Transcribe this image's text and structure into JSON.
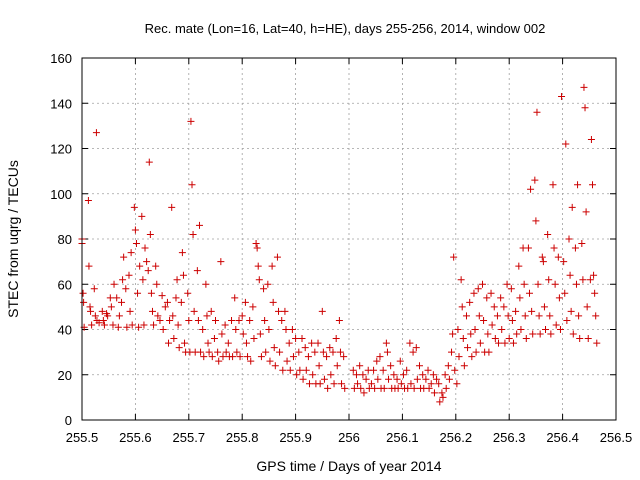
{
  "chart_data": {
    "type": "scatter",
    "title": "Rec. mate (Lon=16, Lat=40, h=HE), days 255-256, 2014, window 002",
    "xlabel": "GPS time / Days of year 2014",
    "ylabel": "STEC from uqrg / TECUs",
    "xlim": [
      255.5,
      256.5
    ],
    "ylim": [
      0,
      160
    ],
    "xticks": [
      "255.5",
      "255.6",
      "255.7",
      "255.8",
      "255.9",
      "256",
      "256.1",
      "256.2",
      "256.3",
      "256.4",
      "256.5"
    ],
    "yticks": [
      "0",
      "20",
      "40",
      "60",
      "80",
      "100",
      "120",
      "140",
      "160"
    ],
    "xtick_values": [
      255.5,
      255.6,
      255.7,
      255.8,
      255.9,
      256.0,
      256.1,
      256.2,
      256.3,
      256.4,
      256.5
    ],
    "ytick_values": [
      0,
      20,
      40,
      60,
      80,
      100,
      120,
      140,
      160
    ],
    "grid": true,
    "marker": "+",
    "color": "#cc0000",
    "points": [
      [
        255.5,
        80
      ],
      [
        255.5,
        78
      ],
      [
        255.502,
        56
      ],
      [
        255.503,
        52
      ],
      [
        255.504,
        41
      ],
      [
        255.512,
        97
      ],
      [
        255.513,
        68
      ],
      [
        255.515,
        50
      ],
      [
        255.516,
        48
      ],
      [
        255.518,
        42
      ],
      [
        255.523,
        58
      ],
      [
        255.525,
        46
      ],
      [
        255.527,
        127
      ],
      [
        255.528,
        44
      ],
      [
        255.532,
        43
      ],
      [
        255.538,
        48
      ],
      [
        255.54,
        44
      ],
      [
        255.542,
        42
      ],
      [
        255.546,
        47
      ],
      [
        255.548,
        46
      ],
      [
        255.553,
        54
      ],
      [
        255.555,
        50
      ],
      [
        255.558,
        42
      ],
      [
        255.56,
        60
      ],
      [
        255.565,
        54
      ],
      [
        255.568,
        41
      ],
      [
        255.57,
        46
      ],
      [
        255.574,
        52
      ],
      [
        255.576,
        62
      ],
      [
        255.578,
        72
      ],
      [
        255.582,
        58
      ],
      [
        255.584,
        41
      ],
      [
        255.588,
        64
      ],
      [
        255.59,
        48
      ],
      [
        255.592,
        74
      ],
      [
        255.594,
        42
      ],
      [
        255.598,
        94
      ],
      [
        255.6,
        84
      ],
      [
        255.602,
        78
      ],
      [
        255.604,
        56
      ],
      [
        255.606,
        41
      ],
      [
        255.608,
        68
      ],
      [
        255.612,
        90
      ],
      [
        255.614,
        62
      ],
      [
        255.616,
        42
      ],
      [
        255.618,
        76
      ],
      [
        255.621,
        70
      ],
      [
        255.624,
        66
      ],
      [
        255.626,
        114
      ],
      [
        255.628,
        82
      ],
      [
        255.63,
        56
      ],
      [
        255.632,
        48
      ],
      [
        255.634,
        42
      ],
      [
        255.638,
        68
      ],
      [
        255.64,
        60
      ],
      [
        255.642,
        46
      ],
      [
        255.646,
        44
      ],
      [
        255.65,
        55
      ],
      [
        255.652,
        40
      ],
      [
        255.656,
        50
      ],
      [
        255.66,
        52
      ],
      [
        255.662,
        34
      ],
      [
        255.664,
        44
      ],
      [
        255.668,
        94
      ],
      [
        255.67,
        46
      ],
      [
        255.672,
        36
      ],
      [
        255.676,
        54
      ],
      [
        255.678,
        62
      ],
      [
        255.68,
        42
      ],
      [
        255.682,
        32
      ],
      [
        255.686,
        52
      ],
      [
        255.688,
        74
      ],
      [
        255.69,
        64
      ],
      [
        255.692,
        34
      ],
      [
        255.694,
        30
      ],
      [
        255.698,
        56
      ],
      [
        255.7,
        44
      ],
      [
        255.702,
        30
      ],
      [
        255.704,
        132
      ],
      [
        255.706,
        104
      ],
      [
        255.708,
        82
      ],
      [
        255.71,
        48
      ],
      [
        255.712,
        30
      ],
      [
        255.716,
        66
      ],
      [
        255.718,
        44
      ],
      [
        255.72,
        86
      ],
      [
        255.722,
        30
      ],
      [
        255.726,
        40
      ],
      [
        255.728,
        28
      ],
      [
        255.732,
        60
      ],
      [
        255.734,
        46
      ],
      [
        255.736,
        34
      ],
      [
        255.738,
        30
      ],
      [
        255.742,
        48
      ],
      [
        255.744,
        28
      ],
      [
        255.748,
        36
      ],
      [
        255.75,
        44
      ],
      [
        255.754,
        30
      ],
      [
        255.756,
        26
      ],
      [
        255.76,
        70
      ],
      [
        255.762,
        38
      ],
      [
        255.764,
        28
      ],
      [
        255.768,
        42
      ],
      [
        255.77,
        30
      ],
      [
        255.774,
        34
      ],
      [
        255.776,
        28
      ],
      [
        255.78,
        44
      ],
      [
        255.782,
        28
      ],
      [
        255.786,
        54
      ],
      [
        255.788,
        40
      ],
      [
        255.79,
        30
      ],
      [
        255.794,
        44
      ],
      [
        255.796,
        28
      ],
      [
        255.8,
        46
      ],
      [
        255.802,
        38
      ],
      [
        255.806,
        52
      ],
      [
        255.808,
        34
      ],
      [
        255.81,
        28
      ],
      [
        255.814,
        44
      ],
      [
        255.816,
        26
      ],
      [
        255.82,
        50
      ],
      [
        255.822,
        36
      ],
      [
        255.826,
        78
      ],
      [
        255.828,
        76
      ],
      [
        255.83,
        68
      ],
      [
        255.832,
        62
      ],
      [
        255.834,
        38
      ],
      [
        255.836,
        28
      ],
      [
        255.84,
        58
      ],
      [
        255.842,
        44
      ],
      [
        255.844,
        30
      ],
      [
        255.848,
        60
      ],
      [
        255.85,
        40
      ],
      [
        255.852,
        26
      ],
      [
        255.856,
        68
      ],
      [
        255.858,
        52
      ],
      [
        255.86,
        32
      ],
      [
        255.862,
        24
      ],
      [
        255.866,
        72
      ],
      [
        255.868,
        48
      ],
      [
        255.87,
        30
      ],
      [
        255.874,
        44
      ],
      [
        255.876,
        22
      ],
      [
        255.88,
        48
      ],
      [
        255.882,
        40
      ],
      [
        255.884,
        26
      ],
      [
        255.888,
        34
      ],
      [
        255.89,
        22
      ],
      [
        255.894,
        40
      ],
      [
        255.896,
        28
      ],
      [
        255.9,
        36
      ],
      [
        255.902,
        20
      ],
      [
        255.906,
        30
      ],
      [
        255.908,
        22
      ],
      [
        255.912,
        36
      ],
      [
        255.914,
        18
      ],
      [
        255.918,
        32
      ],
      [
        255.92,
        22
      ],
      [
        255.924,
        28
      ],
      [
        255.926,
        16
      ],
      [
        255.93,
        34
      ],
      [
        255.932,
        20
      ],
      [
        255.936,
        30
      ],
      [
        255.938,
        16
      ],
      [
        255.942,
        34
      ],
      [
        255.944,
        24
      ],
      [
        255.946,
        16
      ],
      [
        255.95,
        48
      ],
      [
        255.952,
        30
      ],
      [
        255.954,
        18
      ],
      [
        255.958,
        28
      ],
      [
        255.96,
        14
      ],
      [
        255.964,
        32
      ],
      [
        255.966,
        20
      ],
      [
        255.97,
        30
      ],
      [
        255.972,
        16
      ],
      [
        255.976,
        36
      ],
      [
        255.978,
        24
      ],
      [
        255.982,
        44
      ],
      [
        255.984,
        30
      ],
      [
        255.986,
        16
      ],
      [
        255.99,
        28
      ],
      [
        255.992,
        14
      ],
      [
        256.008,
        22
      ],
      [
        256.01,
        14
      ],
      [
        256.014,
        20
      ],
      [
        256.016,
        16
      ],
      [
        256.02,
        24
      ],
      [
        256.022,
        14
      ],
      [
        256.026,
        20
      ],
      [
        256.028,
        12
      ],
      [
        256.032,
        18
      ],
      [
        256.036,
        22
      ],
      [
        256.038,
        14
      ],
      [
        256.042,
        16
      ],
      [
        256.046,
        22
      ],
      [
        256.048,
        14
      ],
      [
        256.052,
        26
      ],
      [
        256.054,
        18
      ],
      [
        256.058,
        28
      ],
      [
        256.06,
        14
      ],
      [
        256.064,
        22
      ],
      [
        256.066,
        14
      ],
      [
        256.07,
        34
      ],
      [
        256.072,
        30
      ],
      [
        256.074,
        18
      ],
      [
        256.078,
        24
      ],
      [
        256.08,
        14
      ],
      [
        256.084,
        20
      ],
      [
        256.086,
        14
      ],
      [
        256.09,
        18
      ],
      [
        256.092,
        14
      ],
      [
        256.096,
        26
      ],
      [
        256.098,
        16
      ],
      [
        256.102,
        20
      ],
      [
        256.104,
        14
      ],
      [
        256.108,
        22
      ],
      [
        256.11,
        14
      ],
      [
        256.114,
        34
      ],
      [
        256.116,
        16
      ],
      [
        256.12,
        30
      ],
      [
        256.122,
        14
      ],
      [
        256.126,
        32
      ],
      [
        256.128,
        18
      ],
      [
        256.132,
        24
      ],
      [
        256.134,
        14
      ],
      [
        256.138,
        20
      ],
      [
        256.14,
        14
      ],
      [
        256.144,
        18
      ],
      [
        256.148,
        22
      ],
      [
        256.15,
        14
      ],
      [
        256.154,
        16
      ],
      [
        256.158,
        20
      ],
      [
        256.16,
        12
      ],
      [
        256.164,
        18
      ],
      [
        256.168,
        16
      ],
      [
        256.17,
        8
      ],
      [
        256.174,
        12
      ],
      [
        256.176,
        10
      ],
      [
        256.18,
        20
      ],
      [
        256.182,
        14
      ],
      [
        256.186,
        24
      ],
      [
        256.188,
        18
      ],
      [
        256.192,
        30
      ],
      [
        256.194,
        38
      ],
      [
        256.196,
        72
      ],
      [
        256.198,
        22
      ],
      [
        256.202,
        16
      ],
      [
        256.204,
        40
      ],
      [
        256.206,
        28
      ],
      [
        256.21,
        62
      ],
      [
        256.212,
        50
      ],
      [
        256.214,
        36
      ],
      [
        256.216,
        24
      ],
      [
        256.22,
        46
      ],
      [
        256.222,
        32
      ],
      [
        256.226,
        52
      ],
      [
        256.228,
        38
      ],
      [
        256.23,
        28
      ],
      [
        256.234,
        56
      ],
      [
        256.236,
        40
      ],
      [
        256.238,
        30
      ],
      [
        256.242,
        58
      ],
      [
        256.244,
        46
      ],
      [
        256.246,
        34
      ],
      [
        256.25,
        60
      ],
      [
        256.252,
        44
      ],
      [
        256.254,
        30
      ],
      [
        256.258,
        54
      ],
      [
        256.26,
        38
      ],
      [
        256.262,
        30
      ],
      [
        256.266,
        56
      ],
      [
        256.268,
        42
      ],
      [
        256.272,
        50
      ],
      [
        256.274,
        36
      ],
      [
        256.278,
        46
      ],
      [
        256.28,
        34
      ],
      [
        256.284,
        54
      ],
      [
        256.286,
        40
      ],
      [
        256.29,
        50
      ],
      [
        256.292,
        34
      ],
      [
        256.296,
        60
      ],
      [
        256.298,
        46
      ],
      [
        256.3,
        36
      ],
      [
        256.304,
        58
      ],
      [
        256.306,
        44
      ],
      [
        256.308,
        34
      ],
      [
        256.312,
        48
      ],
      [
        256.314,
        38
      ],
      [
        256.318,
        68
      ],
      [
        256.32,
        54
      ],
      [
        256.322,
        40
      ],
      [
        256.326,
        76
      ],
      [
        256.328,
        60
      ],
      [
        256.33,
        46
      ],
      [
        256.332,
        36
      ],
      [
        256.336,
        76
      ],
      [
        256.338,
        56
      ],
      [
        256.34,
        102
      ],
      [
        256.342,
        48
      ],
      [
        256.344,
        38
      ],
      [
        256.348,
        106
      ],
      [
        256.35,
        88
      ],
      [
        256.352,
        136
      ],
      [
        256.354,
        60
      ],
      [
        256.356,
        46
      ],
      [
        256.358,
        38
      ],
      [
        256.362,
        72
      ],
      [
        256.364,
        70
      ],
      [
        256.366,
        50
      ],
      [
        256.368,
        40
      ],
      [
        256.372,
        82
      ],
      [
        256.374,
        62
      ],
      [
        256.376,
        46
      ],
      [
        256.378,
        38
      ],
      [
        256.382,
        104
      ],
      [
        256.384,
        76
      ],
      [
        256.386,
        60
      ],
      [
        256.388,
        42
      ],
      [
        256.392,
        72
      ],
      [
        256.394,
        54
      ],
      [
        256.396,
        40
      ],
      [
        256.398,
        143
      ],
      [
        256.402,
        70
      ],
      [
        256.404,
        56
      ],
      [
        256.406,
        122
      ],
      [
        256.408,
        44
      ],
      [
        256.412,
        80
      ],
      [
        256.414,
        64
      ],
      [
        256.416,
        48
      ],
      [
        256.418,
        94
      ],
      [
        256.42,
        38
      ],
      [
        256.424,
        76
      ],
      [
        256.426,
        60
      ],
      [
        256.428,
        104
      ],
      [
        256.43,
        46
      ],
      [
        256.432,
        36
      ],
      [
        256.436,
        78
      ],
      [
        256.438,
        62
      ],
      [
        256.44,
        147
      ],
      [
        256.442,
        138
      ],
      [
        256.444,
        92
      ],
      [
        256.446,
        50
      ],
      [
        256.448,
        36
      ],
      [
        256.452,
        62
      ],
      [
        256.454,
        124
      ],
      [
        256.456,
        104
      ],
      [
        256.458,
        64
      ],
      [
        256.46,
        56
      ],
      [
        256.462,
        46
      ],
      [
        256.464,
        34
      ]
    ]
  }
}
